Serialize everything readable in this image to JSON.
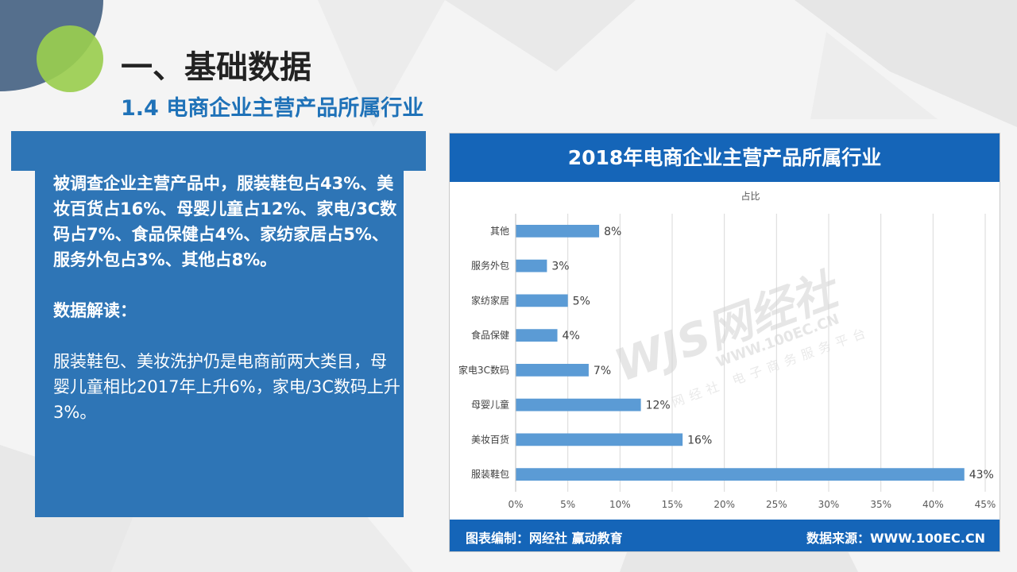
{
  "page": {
    "title": "一、基础数据",
    "subtitle": "1.4 电商企业主营产品所属行业"
  },
  "textbox": {
    "summary": "被调查企业主营产品中，服装鞋包占43%、美妆百货占16%、母婴儿童占12%、家电/3C数码占7%、食品保健占4%、家纺家居占5%、服务外包占3%、其他占8%。",
    "heading": "数据解读：",
    "analysis": "服装鞋包、美妆洗护仍是电商前两大类目，母婴儿童相比2017年上升6%，家电/3C数码上升3%。"
  },
  "chart_header": "2018年电商企业主营产品所属行业",
  "chart_footer": {
    "left": "图表编制：网经社 赢动教育",
    "right": "数据来源：WWW.100EC.CN"
  },
  "watermark": {
    "logo": "WJS网经社",
    "url": "WWW.100EC.CN",
    "tagline": "网经社 电子商务服务平台"
  },
  "colors": {
    "header": "#1565b8",
    "bar": "#5b9bd5",
    "textbox": "#2e75b6"
  },
  "chart_data": {
    "type": "bar",
    "orientation": "horizontal",
    "title": "占比",
    "categories": [
      "其他",
      "服务外包",
      "家纺家居",
      "食品保健",
      "家电3C数码",
      "母婴儿童",
      "美妆百货",
      "服装鞋包"
    ],
    "values": [
      8,
      3,
      5,
      4,
      7,
      12,
      16,
      43
    ],
    "data_labels": [
      "8%",
      "3%",
      "5%",
      "4%",
      "7%",
      "12%",
      "16%",
      "43%"
    ],
    "xlim": [
      0,
      45
    ],
    "xticks": [
      0,
      5,
      10,
      15,
      20,
      25,
      30,
      35,
      40,
      45
    ],
    "xtick_labels": [
      "0%",
      "5%",
      "10%",
      "15%",
      "20%",
      "25%",
      "30%",
      "35%",
      "40%",
      "45%"
    ],
    "grid": true,
    "legend": "none"
  }
}
